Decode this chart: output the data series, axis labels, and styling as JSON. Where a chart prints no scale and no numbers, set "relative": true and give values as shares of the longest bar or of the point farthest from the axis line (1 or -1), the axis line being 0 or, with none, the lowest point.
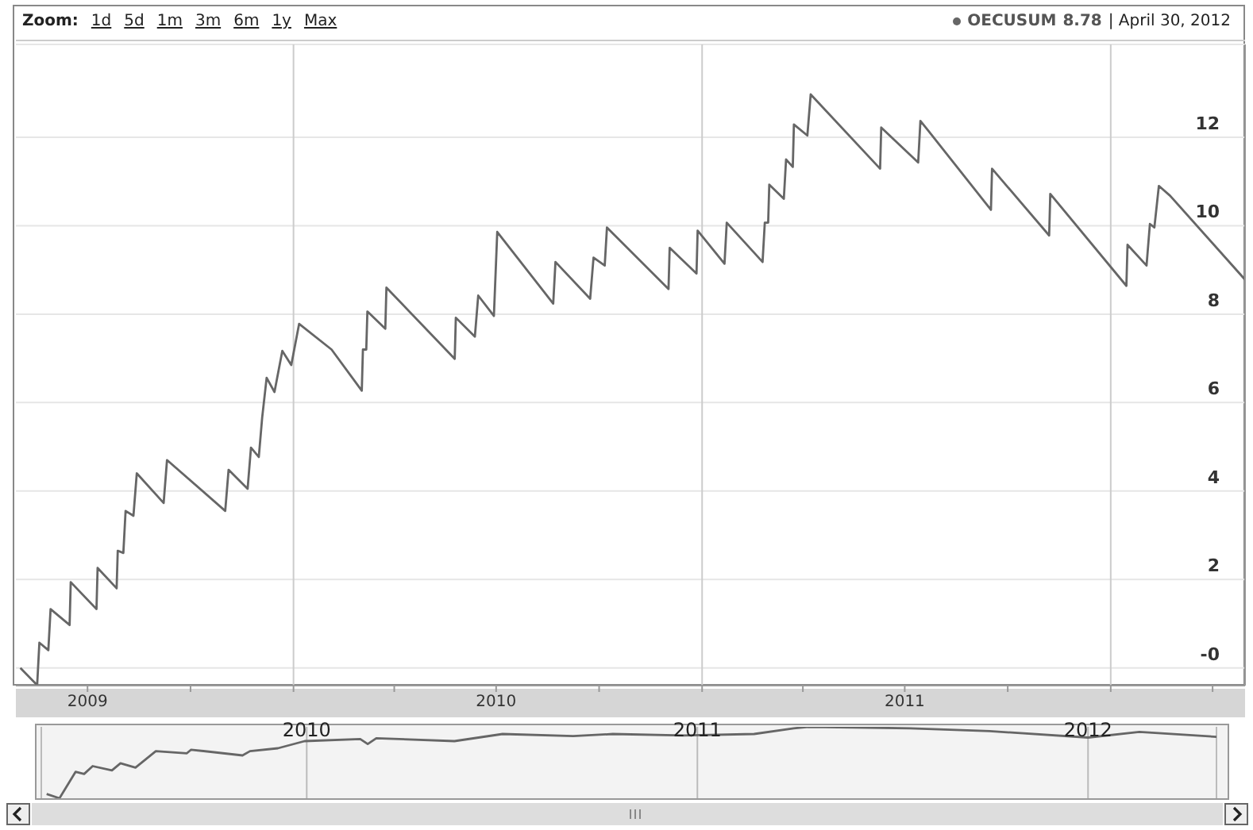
{
  "chart_data": [
    {
      "type": "line",
      "legend": "top right",
      "grid": "y",
      "annotations": [
        "Zoom:",
        "1d",
        "5d",
        "1m",
        "3m",
        "6m",
        "1y",
        "Max",
        "8.78",
        "| April 30, 2012"
      ],
      "xlim": [
        "2009-04-28",
        "2012-04-30"
      ],
      "xticks": [
        {
          "value": "2009-07-01",
          "label": "2009"
        },
        {
          "value": "2009-10-01",
          "label": null
        },
        {
          "value": "2010-01-01",
          "label": null
        },
        {
          "value": "2010-04-01",
          "label": null
        },
        {
          "value": "2010-07-01",
          "label": "2010"
        },
        {
          "value": "2010-10-01",
          "label": null
        },
        {
          "value": "2011-01-01",
          "label": null
        },
        {
          "value": "2011-04-01",
          "label": null
        },
        {
          "value": "2011-07-01",
          "label": "2011"
        },
        {
          "value": "2011-10-01",
          "label": null
        },
        {
          "value": "2012-01-01",
          "label": null
        },
        {
          "value": "2012-04-01",
          "label": null
        }
      ],
      "ylim": [
        -0.4,
        14.1
      ],
      "yticks": [
        {
          "value": 0,
          "label": "-0"
        },
        2,
        4,
        6,
        8,
        10,
        12
      ],
      "ref_lines": [
        {
          "axis": "x",
          "value": "2010-01-01",
          "color": "#cccccc"
        },
        {
          "axis": "x",
          "value": "2011-01-01",
          "color": "#cccccc"
        },
        {
          "axis": "x",
          "value": "2012-01-01",
          "color": "#cccccc"
        }
      ],
      "x": [
        "2009-05-02",
        "2009-05-17",
        "2009-05-19",
        "2009-05-27",
        "2009-05-29",
        "2009-06-15",
        "2009-06-16",
        "2009-07-09",
        "2009-07-10",
        "2009-07-27",
        "2009-07-28",
        "2009-08-02",
        "2009-08-04",
        "2009-08-11",
        "2009-08-14",
        "2009-09-07",
        "2009-09-10",
        "2009-11-01",
        "2009-11-04",
        "2009-11-21",
        "2009-11-24",
        "2009-12-01",
        "2009-12-04",
        "2009-12-08",
        "2009-12-15",
        "2009-12-22",
        "2009-12-30",
        "2010-01-06",
        "2010-02-04",
        "2010-03-03",
        "2010-03-04",
        "2010-03-07",
        "2010-03-08",
        "2010-03-24",
        "2010-03-25",
        "2010-05-25",
        "2010-05-26",
        "2010-06-12",
        "2010-06-15",
        "2010-06-29",
        "2010-07-02",
        "2010-08-21",
        "2010-08-23",
        "2010-09-23",
        "2010-09-26",
        "2010-10-06",
        "2010-10-08",
        "2010-12-02",
        "2010-12-03",
        "2010-12-27",
        "2010-12-28",
        "2011-01-21",
        "2011-01-23",
        "2011-02-24",
        "2011-02-26",
        "2011-03-01",
        "2011-03-02",
        "2011-03-15",
        "2011-03-17",
        "2011-03-23",
        "2011-03-24",
        "2011-04-05",
        "2011-04-08",
        "2011-06-09",
        "2011-06-10",
        "2011-07-13",
        "2011-07-15",
        "2011-07-22",
        "2011-09-16",
        "2011-09-17",
        "2011-11-07",
        "2011-11-08",
        "2012-01-15",
        "2012-01-16",
        "2012-02-02",
        "2012-02-05",
        "2012-02-09",
        "2012-02-13",
        "2012-02-23",
        "2012-04-30"
      ],
      "series": [
        {
          "name": "OECUSUM",
          "color": "#666666",
          "values": [
            0.0,
            -0.39,
            0.57,
            0.4,
            1.33,
            0.97,
            1.94,
            1.33,
            2.26,
            1.8,
            2.65,
            2.6,
            3.55,
            3.44,
            4.4,
            3.73,
            4.7,
            3.55,
            4.48,
            4.05,
            4.98,
            4.77,
            5.66,
            6.56,
            6.24,
            7.17,
            6.85,
            7.78,
            7.2,
            6.27,
            7.2,
            7.2,
            8.06,
            7.67,
            8.6,
            6.99,
            7.92,
            7.49,
            8.42,
            7.96,
            9.86,
            8.24,
            9.18,
            8.35,
            9.28,
            9.1,
            9.96,
            8.57,
            9.5,
            8.92,
            9.89,
            9.14,
            10.07,
            9.18,
            10.07,
            10.07,
            10.93,
            10.61,
            11.5,
            11.33,
            12.29,
            12.04,
            12.97,
            11.29,
            12.22,
            11.43,
            12.37,
            12.15,
            10.36,
            11.29,
            9.78,
            10.72,
            8.64,
            9.57,
            9.1,
            10.04,
            9.96,
            10.9,
            10.68,
            8.78
          ]
        }
      ]
    },
    {
      "type": "line",
      "relative": true,
      "grid": "x",
      "tick_labels": "x",
      "xlim": [
        "2009-04-28",
        "2012-04-30"
      ],
      "xticks": [
        {
          "value": "2010-01-01",
          "label": "2010"
        },
        {
          "value": "2011-01-01",
          "label": "2011"
        },
        {
          "value": "2012-01-01",
          "label": "2012"
        }
      ],
      "x": [
        "2009-05-03",
        "2009-05-15",
        "2009-05-30",
        "2009-06-07",
        "2009-06-15",
        "2009-07-03",
        "2009-07-11",
        "2009-07-25",
        "2009-08-13",
        "2009-09-11",
        "2009-09-15",
        "2009-11-02",
        "2009-11-09",
        "2009-12-05",
        "2009-12-30",
        "2010-02-20",
        "2010-02-27",
        "2010-03-07",
        "2010-05-19",
        "2010-07-03",
        "2010-09-07",
        "2010-10-14",
        "2010-12-19",
        "2011-02-23",
        "2011-04-01",
        "2011-04-16",
        "2011-07-19",
        "2011-10-01",
        "2012-01-01",
        "2012-02-18",
        "2012-04-30"
      ],
      "series": [
        {
          "color": "#666666",
          "values": [
            0.06,
            0,
            0.37,
            0.34,
            0.45,
            0.39,
            0.49,
            0.43,
            0.66,
            0.63,
            0.68,
            0.6,
            0.66,
            0.7,
            0.8,
            0.83,
            0.76,
            0.84,
            0.8,
            0.9,
            0.87,
            0.9,
            0.88,
            0.9,
            0.98,
            1,
            0.98,
            0.94,
            0.85,
            0.93,
            0.86
          ]
        }
      ]
    }
  ]
}
